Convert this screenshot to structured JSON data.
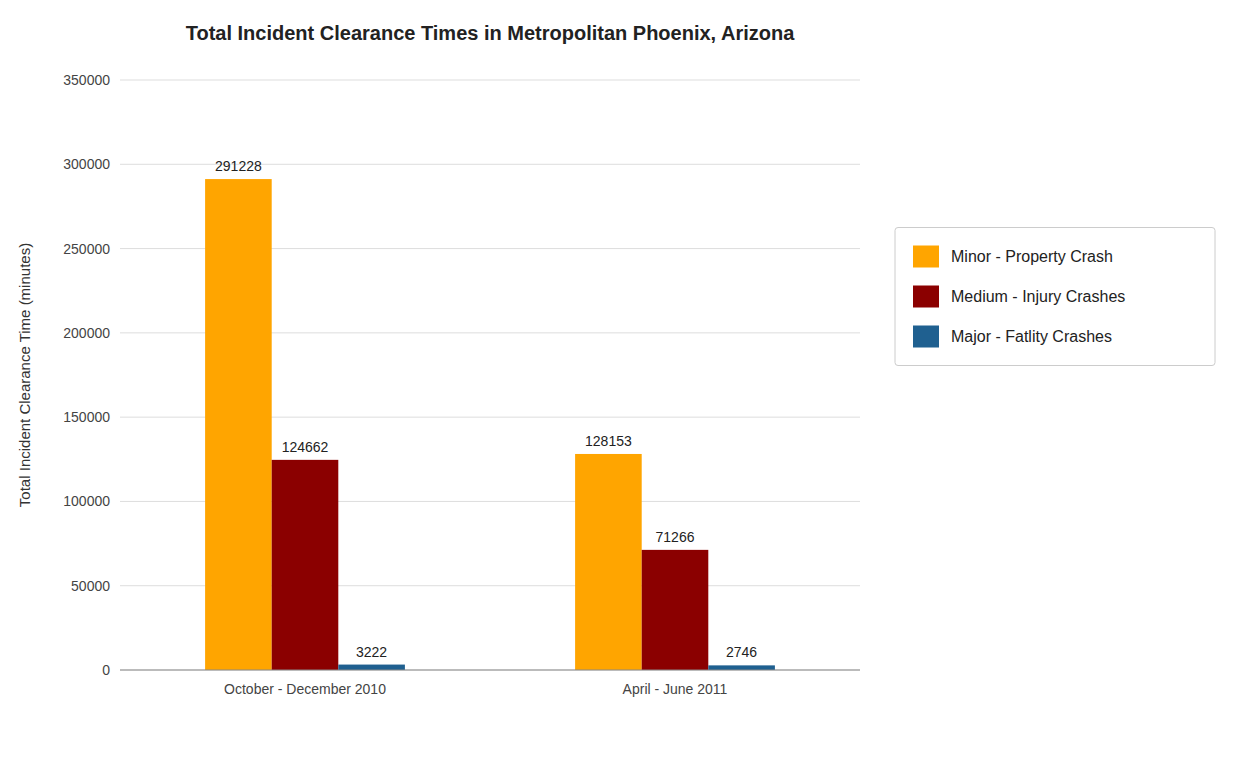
{
  "chart_data": {
    "type": "bar",
    "title": "Total Incident Clearance Times in Metropolitan Phoenix, Arizona",
    "ylabel": "Total Incident Clearance Time (minutes)",
    "categories": [
      "October - December 2010",
      "April - June 2011"
    ],
    "series": [
      {
        "name": "Minor - Property Crash",
        "color": "#FFA500",
        "values": [
          291228,
          128153
        ]
      },
      {
        "name": "Medium - Injury Crashes",
        "color": "#8B0000",
        "values": [
          124662,
          71266
        ]
      },
      {
        "name": "Major - Fatlity Crashes",
        "color": "#1F6090",
        "values": [
          3222,
          2746
        ]
      }
    ],
    "ylim": [
      0,
      350000
    ],
    "yticks": [
      0,
      50000,
      100000,
      150000,
      200000,
      250000,
      300000,
      350000
    ],
    "grid": true,
    "legend": "right",
    "data_labels": true
  }
}
